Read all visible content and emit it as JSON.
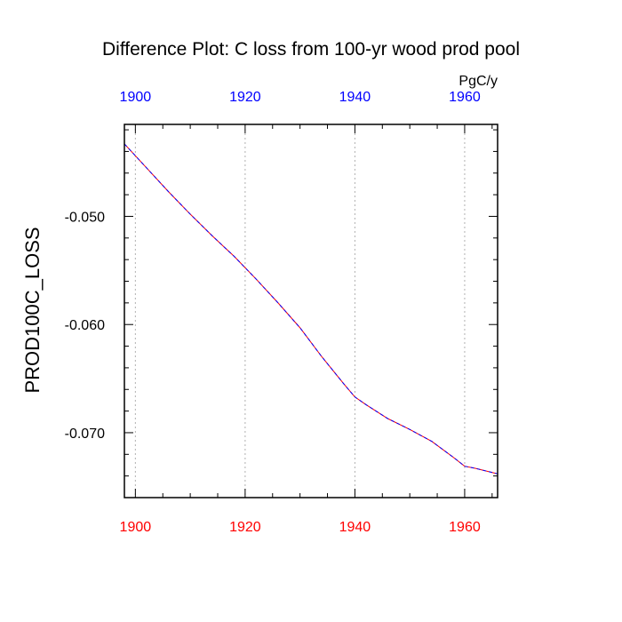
{
  "chart_data": {
    "type": "line",
    "title": "Difference Plot: C loss from 100-yr wood prod pool",
    "units": "PgC/y",
    "ylabel": "PROD100C_LOSS",
    "xlim": [
      1898,
      1966
    ],
    "ylim": [
      -0.076,
      -0.0415
    ],
    "x_ticks": [
      1900,
      1920,
      1940,
      1960
    ],
    "x_tick_labels": [
      "1900",
      "1920",
      "1940",
      "1960"
    ],
    "y_ticks": [
      -0.05,
      -0.06,
      -0.07
    ],
    "y_tick_labels": [
      "-0.050",
      "-0.060",
      "-0.070"
    ],
    "y_minor_step": 0.002,
    "x_minor_step": 5,
    "grid": "vertical dotted",
    "colors": {
      "top_axis_labels": "#0000ff",
      "bottom_axis_labels": "#ff0000",
      "series_a": "#ff0000",
      "series_b": "#0000ff"
    },
    "series": [
      {
        "x": [
          1898,
          1902,
          1906,
          1910,
          1914,
          1918,
          1922,
          1926,
          1930,
          1934,
          1938,
          1940,
          1942,
          1946,
          1950,
          1954,
          1958,
          1960,
          1962,
          1966
        ],
        "values": [
          -0.0433,
          -0.0455,
          -0.0477,
          -0.0498,
          -0.0518,
          -0.0537,
          -0.0558,
          -0.058,
          -0.0603,
          -0.063,
          -0.0655,
          -0.0667,
          -0.0674,
          -0.0687,
          -0.0697,
          -0.0708,
          -0.0723,
          -0.0731,
          -0.0733,
          -0.0738
        ]
      },
      {
        "x": [
          1898,
          1902,
          1906,
          1910,
          1914,
          1918,
          1922,
          1926,
          1930,
          1934,
          1938,
          1940,
          1942,
          1946,
          1950,
          1954,
          1958,
          1960,
          1962,
          1966
        ],
        "values": [
          -0.0433,
          -0.0455,
          -0.0477,
          -0.0498,
          -0.0518,
          -0.0537,
          -0.0558,
          -0.058,
          -0.0603,
          -0.063,
          -0.0655,
          -0.0667,
          -0.0674,
          -0.0687,
          -0.0697,
          -0.0708,
          -0.0723,
          -0.0731,
          -0.0733,
          -0.0738
        ]
      }
    ]
  }
}
